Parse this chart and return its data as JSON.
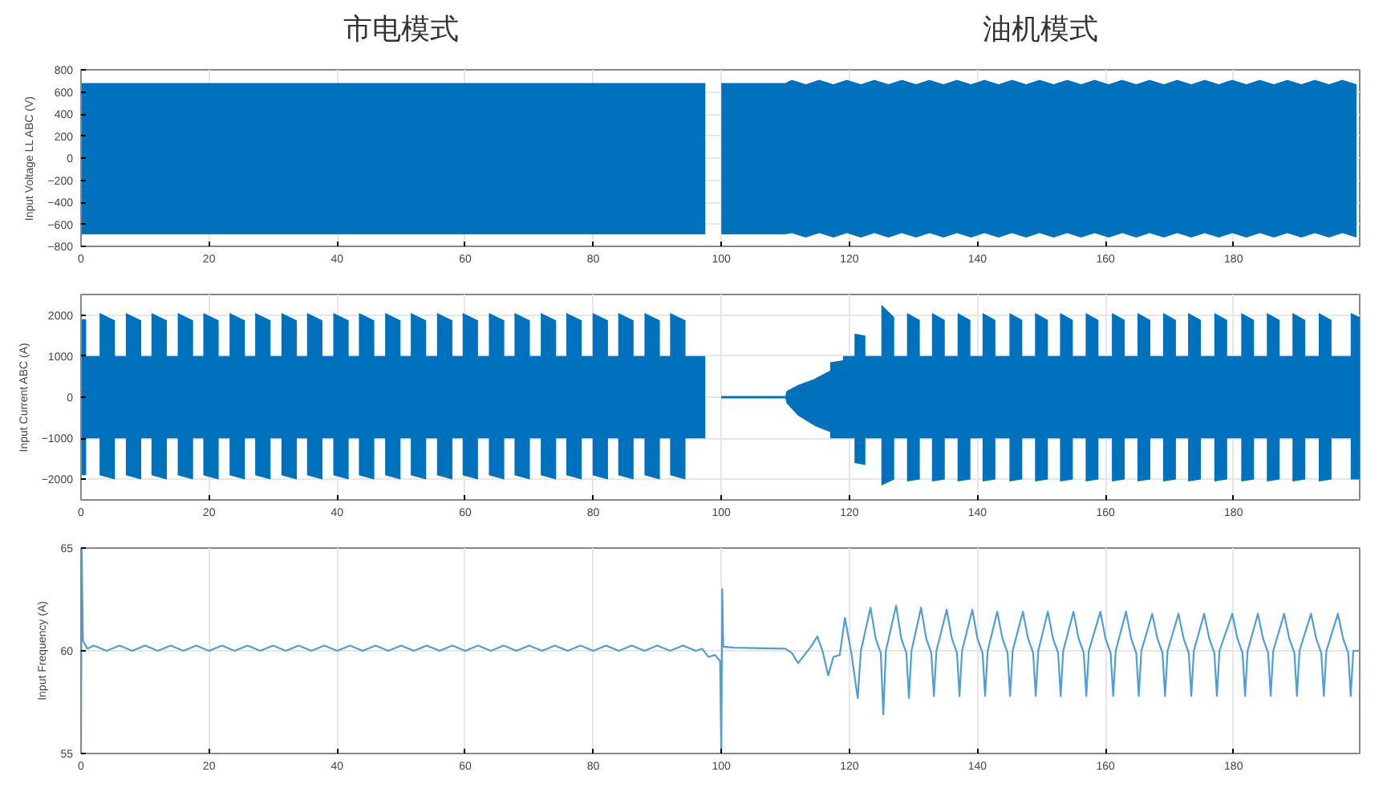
{
  "chart_data": [
    {
      "type": "area",
      "ylabel": "Input Voltage LL ABC (V)",
      "annotations": [
        "市电模式",
        "油机模式"
      ],
      "xlim": [
        0,
        199.7
      ],
      "xticks": [
        0,
        20,
        40,
        60,
        80,
        100,
        120,
        140,
        160,
        180
      ],
      "ylim": [
        -800,
        800
      ],
      "yticks": [
        -800,
        -600,
        -400,
        -200,
        0,
        200,
        400,
        600,
        800
      ],
      "grid": true,
      "series": [
        {
          "color": "#0072bd",
          "x": [
            0,
            97.5,
            98.7,
            100,
            110,
            111,
            113.2,
            115.3,
            117.5,
            119.6,
            121.8,
            123.9,
            126.1,
            128.2,
            130.4,
            132.5,
            134.7,
            136.8,
            139,
            141.1,
            143.3,
            145.4,
            147.6,
            149.7,
            151.9,
            154,
            156.2,
            158.3,
            160.5,
            162.6,
            164.8,
            166.9,
            169.1,
            171.2,
            173.4,
            175.5,
            177.7,
            179.8,
            182,
            184.1,
            186.3,
            188.4,
            190.6,
            192.7,
            194.9,
            197,
            199.2
          ],
          "values": [
            680,
            680,
            null,
            680,
            680,
            710,
            670,
            710,
            670,
            710,
            670,
            710,
            670,
            710,
            670,
            710,
            670,
            710,
            670,
            710,
            670,
            710,
            670,
            710,
            670,
            710,
            670,
            710,
            670,
            710,
            670,
            710,
            670,
            710,
            670,
            710,
            670,
            710,
            670,
            710,
            670,
            710,
            670,
            710,
            670,
            710,
            670
          ]
        },
        {
          "color": "#0072bd",
          "x": [
            0,
            97.5,
            98.7,
            100,
            110,
            111,
            113.2,
            115.3,
            117.5,
            119.6,
            121.8,
            123.9,
            126.1,
            128.2,
            130.4,
            132.5,
            134.7,
            136.8,
            139,
            141.1,
            143.3,
            145.4,
            147.6,
            149.7,
            151.9,
            154,
            156.2,
            158.3,
            160.5,
            162.6,
            164.8,
            166.9,
            169.1,
            171.2,
            173.4,
            175.5,
            177.7,
            179.8,
            182,
            184.1,
            186.3,
            188.4,
            190.6,
            192.7,
            194.9,
            197,
            199.2
          ],
          "values": [
            -690,
            -690,
            null,
            -690,
            -690,
            -680,
            -720,
            -680,
            -720,
            -680,
            -720,
            -680,
            -720,
            -680,
            -720,
            -680,
            -720,
            -680,
            -720,
            -680,
            -720,
            -680,
            -720,
            -680,
            -720,
            -680,
            -720,
            -680,
            -720,
            -680,
            -720,
            -680,
            -720,
            -680,
            -720,
            -680,
            -720,
            -680,
            -720,
            -680,
            -720,
            -680,
            -720,
            -680,
            -720,
            -680,
            -720
          ]
        }
      ]
    },
    {
      "type": "area",
      "ylabel": "Input Current ABC (A)",
      "xlim": [
        0,
        199.7
      ],
      "xticks": [
        0,
        20,
        40,
        60,
        80,
        100,
        120,
        140,
        160,
        180
      ],
      "ylim": [
        -2500,
        2500
      ],
      "yticks": [
        -2000,
        -1000,
        0,
        1000,
        2000
      ],
      "grid": true,
      "series": [
        {
          "color": "#0072bd",
          "x": [
            0,
            0.8,
            0.8,
            2.9,
            2.9,
            5.3,
            5.3,
            7.0,
            7.0,
            9.4,
            9.4,
            11.0,
            11.0,
            13.4,
            13.4,
            15.1,
            15.1,
            17.5,
            17.5,
            19.1,
            19.1,
            21.5,
            21.5,
            23.2,
            23.2,
            25.6,
            25.6,
            27.2,
            27.2,
            29.6,
            29.6,
            31.3,
            31.3,
            33.7,
            33.7,
            35.3,
            35.3,
            37.7,
            37.7,
            39.4,
            39.4,
            41.8,
            41.8,
            43.4,
            43.4,
            45.8,
            45.8,
            47.5,
            47.5,
            49.9,
            49.9,
            51.5,
            51.5,
            53.9,
            53.9,
            55.6,
            55.6,
            58.0,
            58.0,
            59.6,
            59.6,
            62.0,
            62.0,
            63.7,
            63.7,
            66.1,
            66.1,
            67.7,
            67.7,
            70.1,
            70.1,
            71.8,
            71.8,
            74.2,
            74.2,
            75.8,
            75.8,
            78.2,
            78.2,
            79.9,
            79.9,
            82.3,
            82.3,
            83.9,
            83.9,
            86.3,
            86.3,
            88.0,
            88.0,
            90.4,
            90.4,
            92.0,
            92.0,
            94.4,
            94.4,
            97.5,
            98.7,
            100,
            110,
            110.2,
            112,
            114.6,
            117,
            117,
            119,
            119,
            120.8,
            120.8,
            122.5,
            122.5,
            125,
            125,
            127,
            127,
            129,
            129,
            131,
            131,
            132.9,
            132.9,
            134.9,
            134.9,
            136.9,
            136.9,
            138.9,
            138.9,
            140.8,
            140.8,
            142.8,
            142.8,
            145,
            145,
            147,
            147,
            149,
            149,
            151,
            151,
            152.9,
            152.9,
            154.9,
            154.9,
            156.9,
            156.9,
            158.9,
            158.9,
            161,
            161,
            163,
            163,
            165,
            165,
            167,
            167,
            169,
            169,
            171,
            171,
            172.9,
            172.9,
            174.9,
            174.9,
            177,
            177,
            179,
            179,
            181.2,
            181.2,
            183.2,
            183.2,
            185.2,
            185.2,
            187.2,
            187.2,
            189.2,
            189.2,
            191.2,
            191.2,
            193.3,
            193.3,
            195.3,
            195.3,
            198.3,
            198.3,
            199.7
          ],
          "values": [
            1900,
            1900,
            1000,
            1000,
            2050,
            1870,
            1000,
            1000,
            2050,
            1870,
            1000,
            1000,
            2050,
            1870,
            1000,
            1000,
            2050,
            1870,
            1000,
            1000,
            2050,
            1870,
            1000,
            1000,
            2050,
            1870,
            1000,
            1000,
            2050,
            1870,
            1000,
            1000,
            2050,
            1870,
            1000,
            1000,
            2050,
            1870,
            1000,
            1000,
            2050,
            1870,
            1000,
            1000,
            2050,
            1870,
            1000,
            1000,
            2050,
            1870,
            1000,
            1000,
            2050,
            1870,
            1000,
            1000,
            2050,
            1870,
            1000,
            1000,
            2050,
            1870,
            1000,
            1000,
            2050,
            1870,
            1000,
            1000,
            2050,
            1870,
            1000,
            1000,
            2050,
            1870,
            1000,
            1000,
            2050,
            1870,
            1000,
            1000,
            2050,
            1870,
            1000,
            1000,
            2050,
            1870,
            1000,
            1000,
            2050,
            1870,
            1000,
            1000,
            2050,
            1870,
            1000,
            1000,
            null,
            30,
            30,
            150,
            300,
            450,
            650,
            850,
            900,
            1000,
            1000,
            1550,
            1500,
            1000,
            1000,
            2250,
            1950,
            1000,
            1000,
            2050,
            1880,
            1000,
            1000,
            2050,
            1880,
            1000,
            1000,
            2050,
            1880,
            1000,
            1000,
            2050,
            1880,
            1000,
            1000,
            2050,
            1880,
            1000,
            1000,
            2050,
            1880,
            1000,
            1000,
            2050,
            1880,
            1000,
            1000,
            2050,
            1880,
            1000,
            1000,
            2050,
            1880,
            1000,
            1000,
            2050,
            1880,
            1000,
            1000,
            2050,
            1880,
            1000,
            1000,
            2050,
            1880,
            1000,
            1000,
            2050,
            1880,
            1000,
            1000,
            2050,
            1880,
            1000,
            1000,
            2050,
            1880,
            1000,
            1000,
            2050,
            1880,
            1000,
            1000,
            2050,
            1880,
            1000,
            1000,
            2050,
            1950
          ]
        },
        {
          "color": "#0072bd",
          "x": [
            0,
            0.8,
            0.8,
            2.9,
            2.9,
            5.3,
            5.3,
            7.0,
            7.0,
            9.4,
            9.4,
            11.0,
            11.0,
            13.4,
            13.4,
            15.1,
            15.1,
            17.5,
            17.5,
            19.1,
            19.1,
            21.5,
            21.5,
            23.2,
            23.2,
            25.6,
            25.6,
            27.2,
            27.2,
            29.6,
            29.6,
            31.3,
            31.3,
            33.7,
            33.7,
            35.3,
            35.3,
            37.7,
            37.7,
            39.4,
            39.4,
            41.8,
            41.8,
            43.4,
            43.4,
            45.8,
            45.8,
            47.5,
            47.5,
            49.9,
            49.9,
            51.5,
            51.5,
            53.9,
            53.9,
            55.6,
            55.6,
            58.0,
            58.0,
            59.6,
            59.6,
            62.0,
            62.0,
            63.7,
            63.7,
            66.1,
            66.1,
            67.7,
            67.7,
            70.1,
            70.1,
            71.8,
            71.8,
            74.2,
            74.2,
            75.8,
            75.8,
            78.2,
            78.2,
            79.9,
            79.9,
            82.3,
            82.3,
            83.9,
            83.9,
            86.3,
            86.3,
            88.0,
            88.0,
            90.4,
            90.4,
            92.0,
            92.0,
            94.4,
            94.4,
            97.5,
            98.7,
            100,
            110,
            110.2,
            112,
            114.6,
            117,
            117,
            119,
            119,
            120.8,
            120.8,
            122.5,
            122.5,
            125,
            125,
            127,
            127,
            129,
            129,
            131,
            131,
            132.9,
            132.9,
            134.9,
            134.9,
            136.9,
            136.9,
            138.9,
            138.9,
            140.8,
            140.8,
            142.8,
            142.8,
            145,
            145,
            147,
            147,
            149,
            149,
            151,
            151,
            152.9,
            152.9,
            154.9,
            154.9,
            156.9,
            156.9,
            158.9,
            158.9,
            161,
            161,
            163,
            163,
            165,
            165,
            167,
            167,
            169,
            169,
            171,
            171,
            172.9,
            172.9,
            174.9,
            174.9,
            177,
            177,
            179,
            179,
            181.2,
            181.2,
            183.2,
            183.2,
            185.2,
            185.2,
            187.2,
            187.2,
            189.2,
            189.2,
            191.2,
            191.2,
            193.3,
            193.3,
            195.3,
            195.3,
            198.3,
            198.3,
            199.7
          ],
          "values": [
            -1900,
            -1900,
            -1000,
            -1000,
            -1900,
            -2000,
            -1000,
            -1000,
            -1900,
            -2000,
            -1000,
            -1000,
            -1900,
            -2000,
            -1000,
            -1000,
            -1900,
            -2000,
            -1000,
            -1000,
            -1900,
            -2000,
            -1000,
            -1000,
            -1900,
            -2000,
            -1000,
            -1000,
            -1900,
            -2000,
            -1000,
            -1000,
            -1900,
            -2000,
            -1000,
            -1000,
            -1900,
            -2000,
            -1000,
            -1000,
            -1900,
            -2000,
            -1000,
            -1000,
            -1900,
            -2000,
            -1000,
            -1000,
            -1900,
            -2000,
            -1000,
            -1000,
            -1900,
            -2000,
            -1000,
            -1000,
            -1900,
            -2000,
            -1000,
            -1000,
            -1900,
            -2000,
            -1000,
            -1000,
            -1900,
            -2000,
            -1000,
            -1000,
            -1900,
            -2000,
            -1000,
            -1000,
            -1900,
            -2000,
            -1000,
            -1000,
            -1900,
            -2000,
            -1000,
            -1000,
            -1900,
            -2000,
            -1000,
            -1000,
            -1900,
            -2000,
            -1000,
            -1000,
            -1900,
            -2000,
            -1000,
            -1000,
            -1900,
            -2000,
            -1000,
            -1000,
            null,
            -30,
            -30,
            -150,
            -450,
            -700,
            -850,
            -1000,
            -1000,
            -1000,
            -1000,
            -1600,
            -1650,
            -1000,
            -1000,
            -2150,
            -2000,
            -1000,
            -1000,
            -2050,
            -2000,
            -1000,
            -1000,
            -2050,
            -2000,
            -1000,
            -1000,
            -2050,
            -2000,
            -1000,
            -1000,
            -2050,
            -2000,
            -1000,
            -1000,
            -2050,
            -2000,
            -1000,
            -1000,
            -2050,
            -2000,
            -1000,
            -1000,
            -2050,
            -2000,
            -1000,
            -1000,
            -2050,
            -2000,
            -1000,
            -1000,
            -2050,
            -2000,
            -1000,
            -1000,
            -2050,
            -2000,
            -1000,
            -1000,
            -2050,
            -2000,
            -1000,
            -1000,
            -2050,
            -2000,
            -1000,
            -1000,
            -2050,
            -2000,
            -1000,
            -1000,
            -2050,
            -2000,
            -1000,
            -1000,
            -2050,
            -2000,
            -1000,
            -1000,
            -2050,
            -2000,
            -1000,
            -1000,
            -2050,
            -2000,
            -1000,
            -1000,
            -2000,
            -2000
          ]
        }
      ]
    },
    {
      "type": "line",
      "ylabel": "Input Frequency (A)",
      "xlim": [
        0,
        199.7
      ],
      "xticks": [
        0,
        20,
        40,
        60,
        80,
        100,
        120,
        140,
        160,
        180
      ],
      "ylim": [
        55,
        65
      ],
      "yticks": [
        55,
        60,
        65
      ],
      "grid": true,
      "series": [
        {
          "color": "#4d9fd6",
          "x": [
            0,
            0.1,
            0.3,
            1,
            2,
            4,
            6,
            8,
            10,
            12,
            14,
            16,
            18,
            20,
            22,
            24,
            26,
            28,
            30,
            32,
            34,
            36,
            38,
            40,
            42,
            44,
            46,
            48,
            50,
            52,
            54,
            56,
            58,
            60,
            62,
            64,
            66,
            68,
            70,
            72,
            74,
            76,
            78,
            80,
            82,
            84,
            86,
            88,
            90,
            92,
            94,
            96,
            97,
            98,
            99,
            99.8,
            100,
            100.15,
            100.3,
            102,
            110,
            111,
            112,
            113,
            114,
            115,
            115.8,
            116.7,
            117.5,
            118.5,
            119.3,
            120.3,
            121.3,
            121.8,
            123.3,
            124.1,
            124.9,
            125.3,
            125.7,
            127.3,
            128.1,
            128.9,
            129.3,
            129.7,
            131.2,
            132.0,
            132.8,
            133.2,
            133.6,
            135.2,
            136.0,
            136.8,
            137.2,
            137.6,
            139.2,
            140.0,
            140.8,
            141.2,
            141.6,
            143.1,
            143.9,
            144.7,
            145.1,
            145.5,
            147.1,
            147.9,
            148.7,
            149.1,
            149.5,
            151,
            151.8,
            152.6,
            153,
            153.4,
            155,
            155.8,
            156.6,
            157,
            157.4,
            159.2,
            160,
            160.8,
            161.2,
            161.6,
            163.2,
            164,
            164.8,
            165.2,
            165.6,
            167.3,
            168.1,
            168.9,
            169.3,
            169.7,
            171.4,
            172.2,
            173,
            173.4,
            173.8,
            175.4,
            176.2,
            177,
            177.4,
            177.8,
            179.8,
            180.6,
            181.4,
            181.8,
            182.2,
            183.8,
            184.6,
            185.4,
            185.8,
            186.2,
            187.9,
            188.7,
            189.5,
            189.9,
            190.3,
            192.1,
            192.9,
            193.7,
            194.1,
            194.5,
            196.3,
            197.1,
            197.9,
            198.3,
            198.7,
            199.7
          ],
          "values": [
            55,
            65,
            60.5,
            60.1,
            60.25,
            60.0,
            60.25,
            60.0,
            60.25,
            60.0,
            60.25,
            60.0,
            60.25,
            60.0,
            60.25,
            60.0,
            60.25,
            60.0,
            60.25,
            60.0,
            60.25,
            60.0,
            60.25,
            60.0,
            60.25,
            60.0,
            60.25,
            60.0,
            60.25,
            60.0,
            60.25,
            60.0,
            60.25,
            60.0,
            60.25,
            60.0,
            60.25,
            60.0,
            60.25,
            60.0,
            60.25,
            60.0,
            60.25,
            60.0,
            60.25,
            60.0,
            60.25,
            60.0,
            60.25,
            60.0,
            60.25,
            60.0,
            60.1,
            59.7,
            59.8,
            59.5,
            55,
            63,
            60.2,
            60.15,
            60.1,
            59.9,
            59.4,
            59.8,
            60.2,
            60.7,
            60.0,
            58.8,
            59.7,
            59.8,
            61.6,
            59.9,
            57.7,
            60.0,
            62.1,
            60.6,
            59.9,
            56.9,
            60.0,
            62.2,
            60.6,
            59.9,
            57.7,
            60.0,
            62.1,
            60.6,
            59.9,
            57.8,
            60.0,
            62.0,
            60.6,
            59.9,
            57.8,
            60.0,
            62.0,
            60.6,
            59.9,
            57.8,
            60.0,
            61.9,
            60.6,
            59.9,
            57.8,
            60.0,
            61.9,
            60.6,
            59.9,
            57.8,
            60.0,
            61.9,
            60.6,
            59.9,
            57.8,
            60.0,
            61.9,
            60.6,
            59.9,
            57.8,
            60.0,
            61.9,
            60.6,
            59.9,
            57.8,
            60.0,
            61.9,
            60.6,
            59.9,
            57.8,
            60.0,
            61.8,
            60.6,
            59.9,
            57.8,
            60.0,
            61.8,
            60.6,
            59.9,
            57.8,
            60.0,
            61.8,
            60.6,
            59.9,
            57.8,
            60.0,
            61.8,
            60.6,
            59.9,
            57.8,
            60.0,
            61.8,
            60.6,
            59.9,
            57.8,
            60.0,
            61.8,
            60.6,
            59.9,
            57.8,
            60.0,
            61.8,
            60.6,
            59.9,
            57.8,
            60.0,
            61.8,
            60.6,
            59.9,
            57.8,
            60.0,
            60.0
          ]
        }
      ]
    }
  ]
}
